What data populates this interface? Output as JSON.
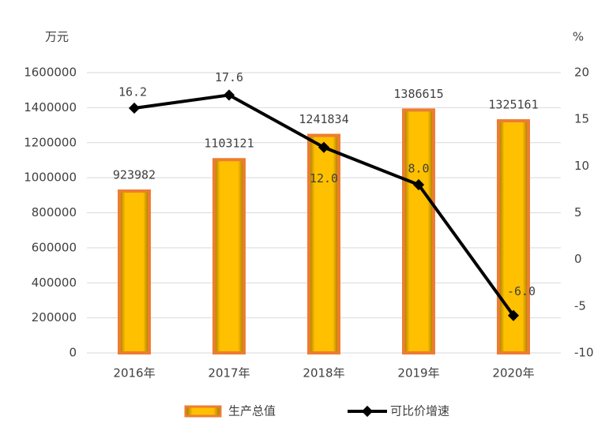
{
  "chart_data": {
    "type": "bar",
    "y_label": "万元",
    "y2_label": "%",
    "categories": [
      "2016年",
      "2017年",
      "2018年",
      "2019年",
      "2020年"
    ],
    "series": [
      {
        "name": "生产总值",
        "type": "bar",
        "color": "#ffc000",
        "values": [
          923982,
          1103121,
          1241834,
          1386615,
          1325161
        ]
      },
      {
        "name": "可比价增速",
        "type": "line",
        "axis": "y2",
        "color": "#000000",
        "values": [
          16.2,
          17.6,
          12,
          8,
          -6
        ],
        "value_labels": [
          "16.2",
          "17.6",
          "12.0",
          "8.0",
          "-6.0"
        ]
      }
    ],
    "ylim": [
      0,
      1600000
    ],
    "yticks": [
      0,
      200000,
      400000,
      600000,
      800000,
      1000000,
      1200000,
      1400000,
      1600000
    ],
    "y2lim": [
      -10,
      20
    ],
    "y2ticks": [
      -10,
      -5,
      0,
      5,
      10,
      15,
      20
    ],
    "grid": true
  }
}
